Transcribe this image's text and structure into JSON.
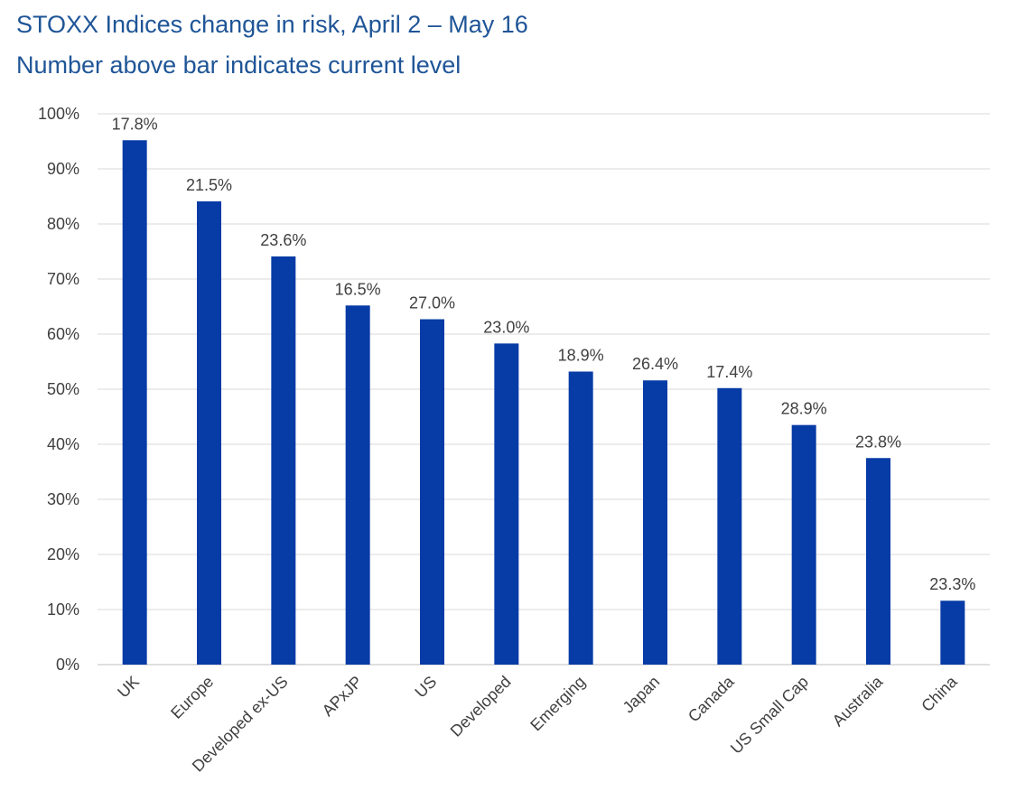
{
  "title": "STOXX Indices change in risk, April 2 – May 16",
  "subtitle": "Number above bar indicates current level",
  "colors": {
    "bar": "#073ba6",
    "grid": "#d9d9d9",
    "title": "#1f5597",
    "text": "#404040"
  },
  "chart_data": {
    "type": "bar",
    "title": "STOXX Indices change in risk, April 2 – May 16",
    "subtitle": "Number above bar indicates current level",
    "xlabel": "",
    "ylabel": "",
    "ylim": [
      0,
      100
    ],
    "yticks": [
      "0%",
      "10%",
      "20%",
      "30%",
      "40%",
      "50%",
      "60%",
      "70%",
      "80%",
      "90%",
      "100%"
    ],
    "grid": true,
    "legend": "none",
    "categories": [
      "UK",
      "Europe",
      "Developed ex-US",
      "APxJP",
      "US",
      "Developed",
      "Emerging",
      "Japan",
      "Canada",
      "US Small Cap",
      "Australia",
      "China"
    ],
    "values": [
      95.2,
      84.1,
      74.1,
      65.2,
      62.7,
      58.3,
      53.2,
      51.6,
      50.2,
      43.5,
      37.5,
      11.6
    ],
    "data_labels": [
      "17.8%",
      "21.5%",
      "23.6%",
      "16.5%",
      "27.0%",
      "23.0%",
      "18.9%",
      "26.4%",
      "17.4%",
      "28.9%",
      "23.8%",
      "23.3%"
    ]
  }
}
